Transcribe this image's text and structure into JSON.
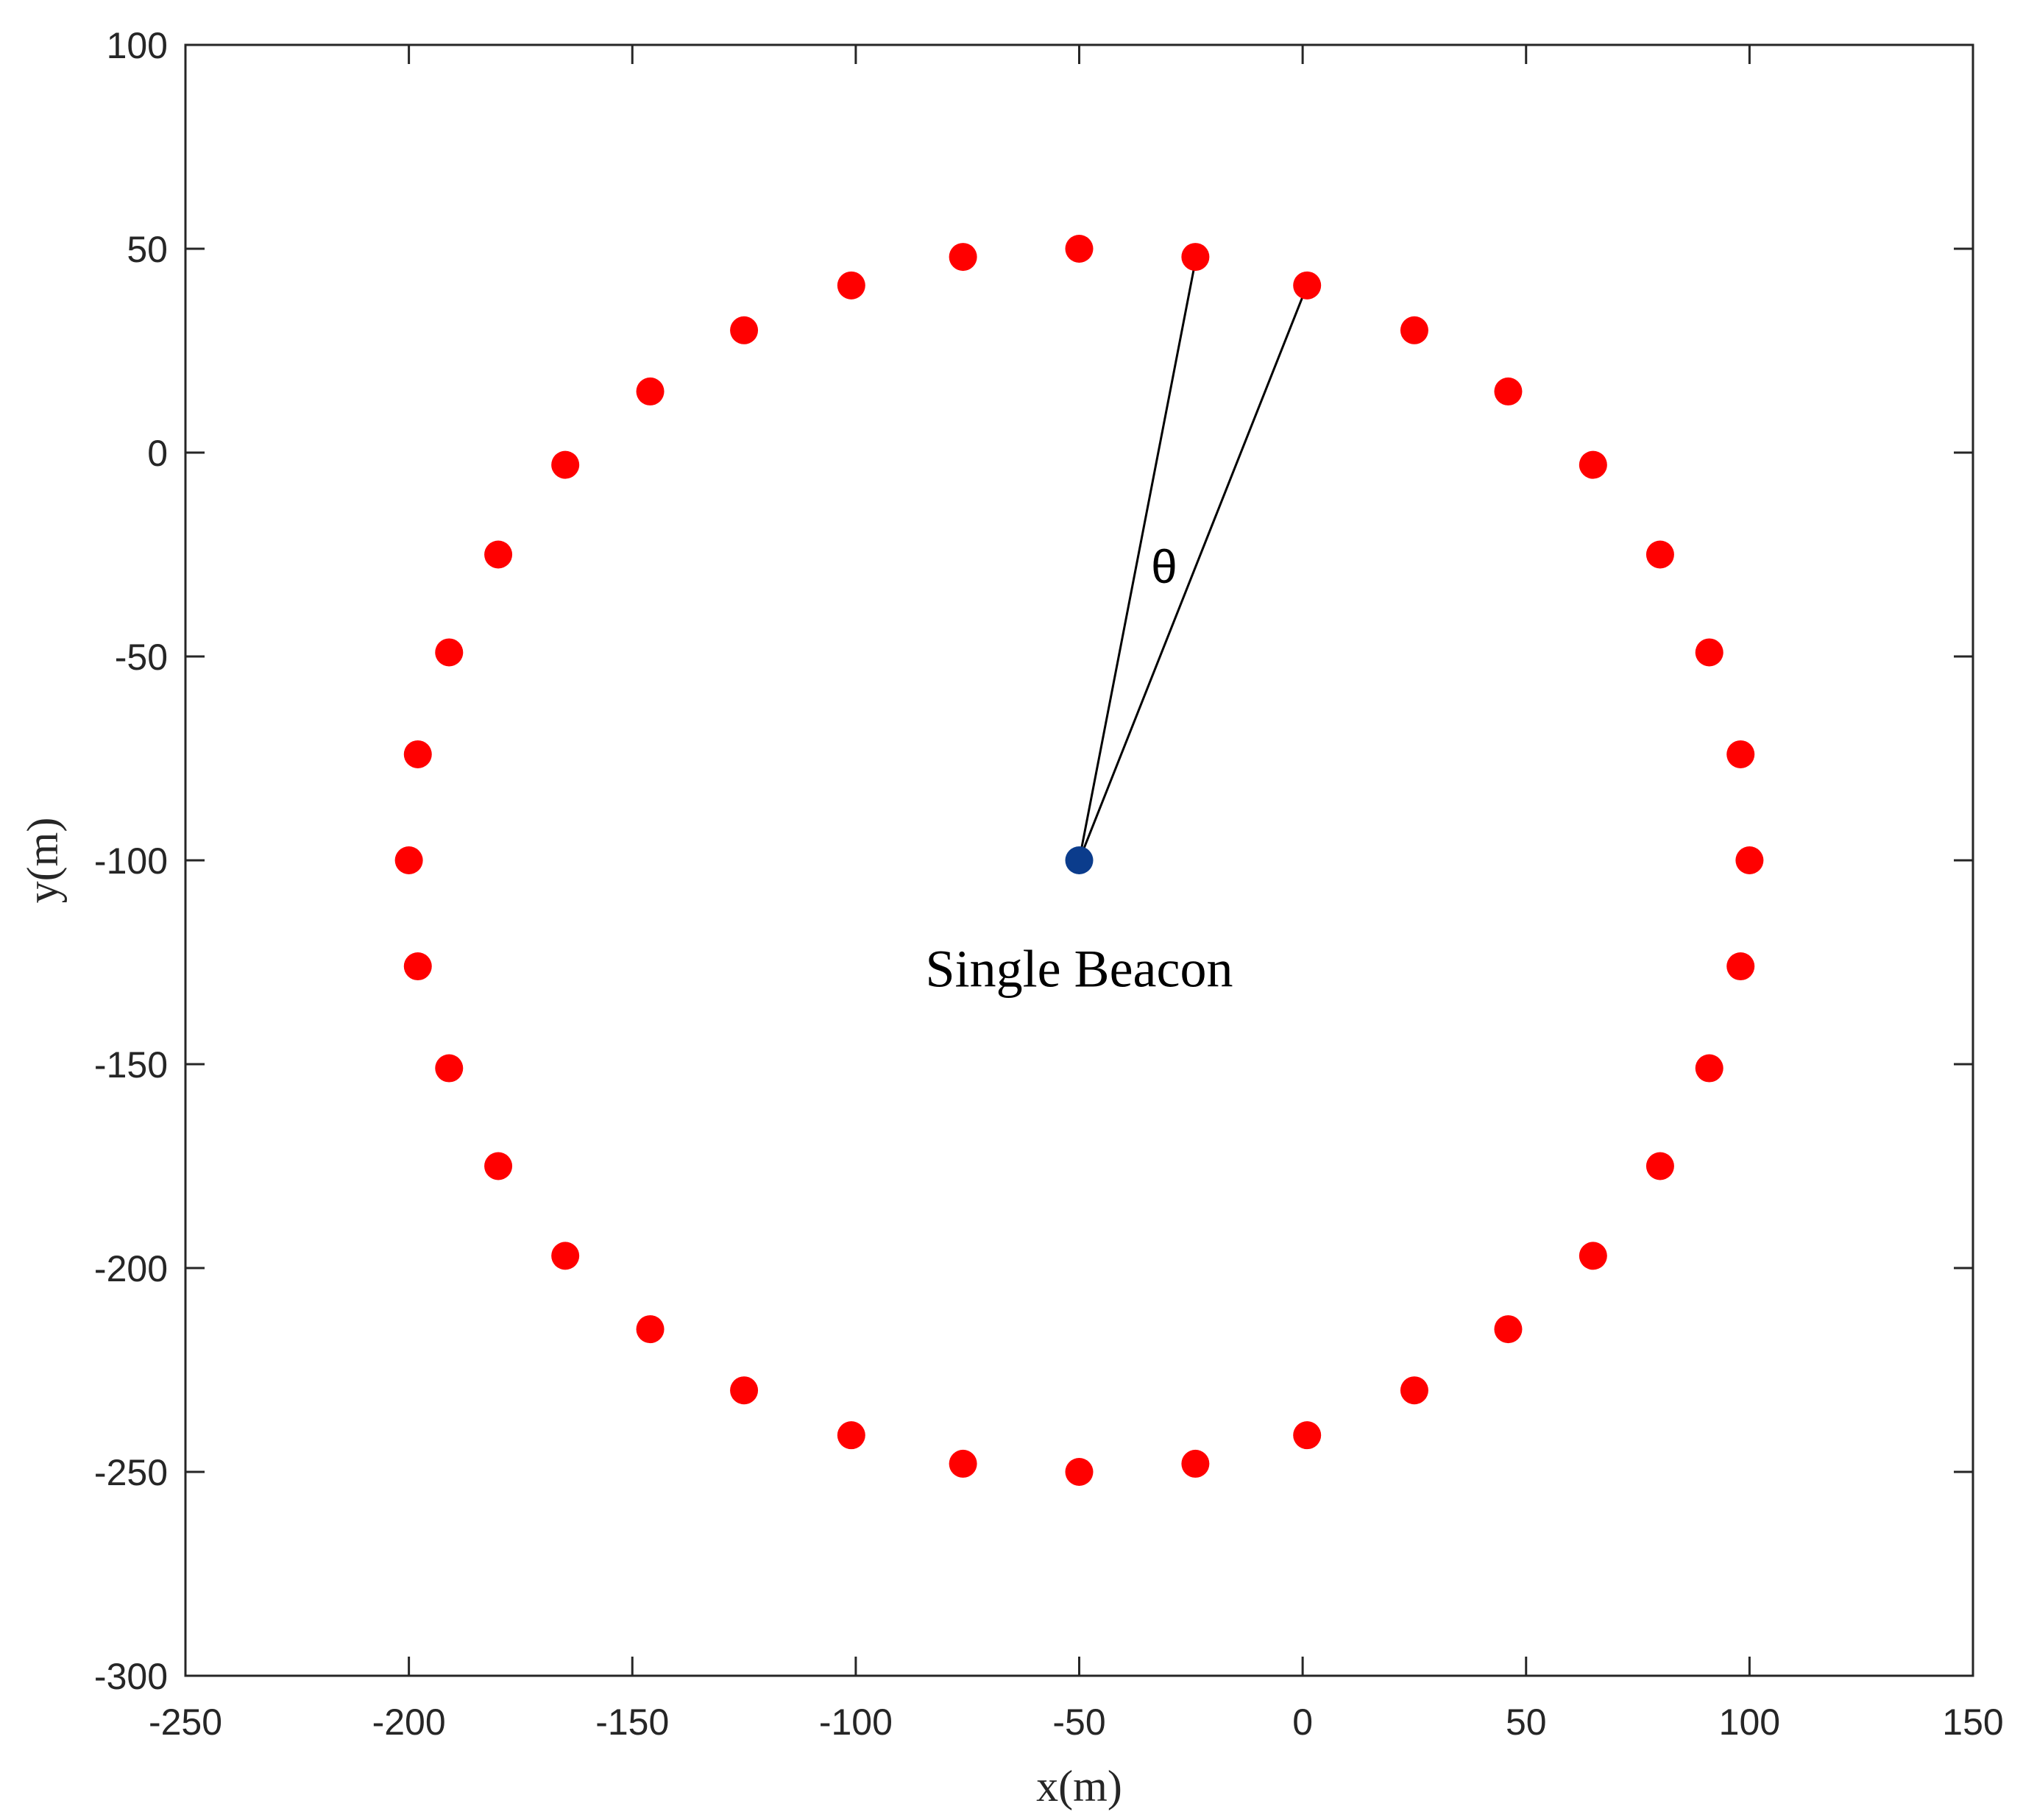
{
  "chart_data": {
    "type": "scatter",
    "xlabel": "x(m)",
    "ylabel": "y(m)",
    "xlim": [
      -250,
      150
    ],
    "ylim": [
      -300,
      100
    ],
    "xticks": [
      -250,
      -200,
      -150,
      -100,
      -50,
      0,
      50,
      100,
      150
    ],
    "yticks": [
      100,
      50,
      0,
      -50,
      -100,
      -150,
      -200,
      -250,
      -300
    ],
    "grid": false,
    "series": [
      {
        "marker_color": "#ff0000",
        "points": [
          [
            -50,
            50
          ],
          [
            -24,
            48
          ],
          [
            1,
            41
          ],
          [
            25,
            30
          ],
          [
            46,
            15
          ],
          [
            65,
            -3
          ],
          [
            80,
            -25
          ],
          [
            91,
            -49
          ],
          [
            98,
            -74
          ],
          [
            100,
            -100
          ],
          [
            98,
            -126
          ],
          [
            91,
            -151
          ],
          [
            80,
            -175
          ],
          [
            65,
            -197
          ],
          [
            46,
            -215
          ],
          [
            25,
            -230
          ],
          [
            1,
            -241
          ],
          [
            -24,
            -248
          ],
          [
            -50,
            -250
          ],
          [
            -76,
            -248
          ],
          [
            -101,
            -241
          ],
          [
            -125,
            -230
          ],
          [
            -146,
            -215
          ],
          [
            -165,
            -197
          ],
          [
            -180,
            -175
          ],
          [
            -191,
            -151
          ],
          [
            -198,
            -126
          ],
          [
            -200,
            -100
          ],
          [
            -198,
            -74
          ],
          [
            -191,
            -49
          ],
          [
            -180,
            -25
          ],
          [
            -165,
            -3
          ],
          [
            -146,
            15
          ],
          [
            -125,
            30
          ],
          [
            -101,
            41
          ],
          [
            -76,
            48
          ]
        ]
      },
      {
        "marker_color": "#0b3c8c",
        "points": [
          [
            -50,
            -100
          ]
        ]
      }
    ],
    "annotations": [
      {
        "text": "Single Beacon",
        "x": -50,
        "y": -127
      },
      {
        "text": "θ",
        "x": -31,
        "y": -28
      }
    ],
    "lines": [
      {
        "from": [
          -50,
          -100
        ],
        "to": [
          -24,
          47
        ]
      },
      {
        "from": [
          -50,
          -100
        ],
        "to": [
          1,
          41
        ]
      }
    ]
  }
}
